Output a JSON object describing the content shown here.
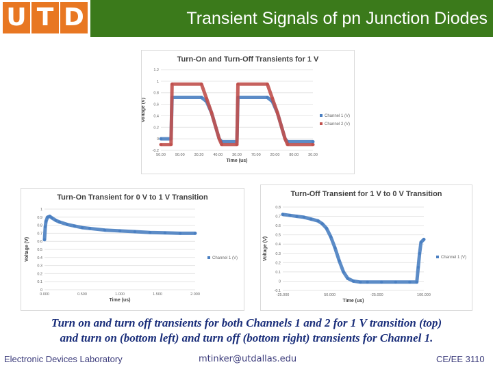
{
  "header": {
    "logo_letters": [
      "U",
      "T",
      "D"
    ],
    "title": "Transient Signals of pn Junction Diodes",
    "bar_color": "#3b7a1b",
    "logo_color": "#e87722"
  },
  "chart_data": [
    {
      "type": "line",
      "title": "Turn-On and Turn-Off Transients for 1 V",
      "xlabel": "Time (us)",
      "ylabel": "Voltage (V)",
      "ylim": [
        -0.2,
        1.2
      ],
      "yticks": [
        "1.2",
        "1",
        "0.8",
        "0.6",
        "0.4",
        "0.2",
        "0",
        "-0.2"
      ],
      "xticks": [
        "50.00",
        "90.00",
        "30.20",
        "40.00",
        "30.00",
        "70.00",
        "20.00",
        "80.00",
        "30.00"
      ],
      "legend": "right",
      "series": [
        {
          "name": "Channel 1 (V)",
          "color": "#4a7fc1",
          "x": [
            0,
            2,
            2.2,
            8,
            9,
            10,
            11.5,
            12,
            15,
            15.2,
            21,
            22,
            23,
            24.5,
            25,
            30
          ],
          "y": [
            0,
            0,
            0.72,
            0.72,
            0.65,
            0.45,
            0.0,
            -0.05,
            -0.05,
            0.72,
            0.72,
            0.65,
            0.45,
            0.0,
            -0.05,
            -0.05
          ]
        },
        {
          "name": "Channel 2 (V)",
          "color": "#c0504d",
          "x": [
            0,
            2,
            2.2,
            8,
            9,
            10,
            11.5,
            12,
            15,
            15.2,
            21,
            22,
            23,
            24.5,
            25,
            30
          ],
          "y": [
            -0.1,
            -0.1,
            0.95,
            0.95,
            0.7,
            0.45,
            0.0,
            -0.1,
            -0.1,
            0.95,
            0.95,
            0.7,
            0.45,
            0.0,
            -0.1,
            -0.1
          ]
        }
      ]
    },
    {
      "type": "scatter",
      "title": "Turn-On Transient for 0 V to 1 V Transition",
      "xlabel": "Time (us)",
      "ylabel": "Voltage (V)",
      "ylim": [
        0,
        1
      ],
      "xlim": [
        0,
        2
      ],
      "yticks": [
        "1",
        "0.9",
        "0.8",
        "0.7",
        "0.6",
        "0.5",
        "0.4",
        "0.3",
        "0.2",
        "0.1",
        "0"
      ],
      "xticks": [
        "0.000",
        "0.500",
        "1.000",
        "1.500",
        "2.000"
      ],
      "legend": "right",
      "series": [
        {
          "name": "Channel 1 (V)",
          "color": "#4a7fc1",
          "x": [
            0,
            0.01,
            0.02,
            0.04,
            0.07,
            0.1,
            0.15,
            0.2,
            0.3,
            0.4,
            0.5,
            0.6,
            0.8,
            1.0,
            1.2,
            1.4,
            1.6,
            1.8,
            2.0
          ],
          "y": [
            0.62,
            0.78,
            0.85,
            0.9,
            0.91,
            0.89,
            0.86,
            0.84,
            0.81,
            0.79,
            0.77,
            0.76,
            0.74,
            0.73,
            0.72,
            0.71,
            0.705,
            0.7,
            0.7
          ]
        }
      ]
    },
    {
      "type": "scatter",
      "title": "Turn-Off Transient for 1 V to 0 V Transition",
      "xlabel": "Time (us)",
      "ylabel": "Voltage (V)",
      "ylim": [
        -0.1,
        0.8
      ],
      "xlim": [
        0,
        100
      ],
      "yticks": [
        "0.8",
        "0.7",
        "0.6",
        "0.5",
        "0.4",
        "0.3",
        "0.2",
        "0.1",
        "0",
        "-0.1"
      ],
      "xticks": [
        "-25.000",
        "50.000",
        "-25.000",
        "100.000"
      ],
      "legend": "right",
      "series": [
        {
          "name": "Channel 1 (V)",
          "color": "#4a7fc1",
          "x": [
            0,
            5,
            10,
            15,
            20,
            25,
            28,
            31,
            34,
            37,
            40,
            43,
            46,
            50,
            55,
            60,
            70,
            80,
            90,
            95,
            96,
            97,
            98,
            100
          ],
          "y": [
            0.72,
            0.71,
            0.7,
            0.69,
            0.67,
            0.65,
            0.62,
            0.57,
            0.48,
            0.36,
            0.22,
            0.1,
            0.03,
            0.0,
            -0.01,
            -0.01,
            -0.01,
            -0.01,
            -0.01,
            -0.01,
            0.15,
            0.3,
            0.42,
            0.45
          ]
        }
      ]
    }
  ],
  "caption": {
    "line1": "Turn on and turn off transients for both Channels 1 and 2 for 1 V transition (top)",
    "line2": "and turn on (bottom left) and turn off (bottom right) transients for Channel 1."
  },
  "footer": {
    "left": "Electronic Devices Laboratory",
    "center": "mtinker@utdallas.edu",
    "right": "CE/EE 3110"
  }
}
